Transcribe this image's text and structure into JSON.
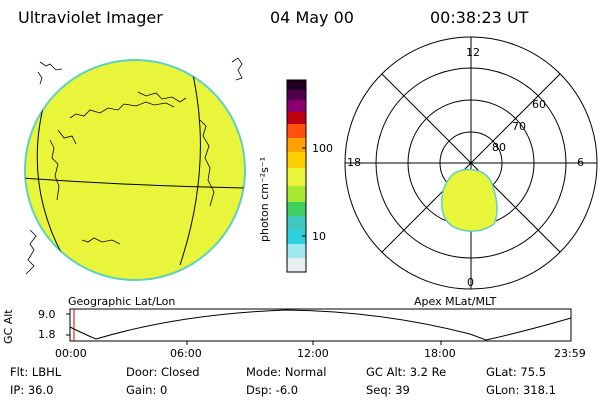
{
  "header": {
    "instrument": "Ultraviolet Imager",
    "date": "04 May 00",
    "time": "00:38:23 UT"
  },
  "colorbar": {
    "unit_label": "photon cm⁻²s⁻¹",
    "ticks": [
      "100",
      "10"
    ],
    "scale": "log"
  },
  "left_panel": {
    "caption": "Geographic Lat/Lon"
  },
  "right_panel": {
    "caption": "Apex MLat/MLT",
    "mlt_labels": {
      "top": "12",
      "left": "18",
      "right": "6",
      "bottom": "0"
    },
    "mlat_labels": [
      "60",
      "70",
      "80"
    ]
  },
  "altitude_plot": {
    "ylabel": "GC Alt",
    "yticks": [
      "9.0",
      "1.8"
    ],
    "xticks": [
      "00:00",
      "06:00",
      "12:00",
      "18:00",
      "23:59"
    ],
    "current_time_marker": "00:38"
  },
  "info": {
    "flt": "Flt: LBHL",
    "ip": "IP: 36.0",
    "door": "Door: Closed",
    "gain": "Gain:  0",
    "mode": "Mode: Normal",
    "dsp": "Dsp:   -6.0",
    "gc_alt": "GC Alt: 3.2 Re",
    "seq": "Seq: 39",
    "glat": "GLat:  75.5",
    "glon": "GLon: 318.1"
  },
  "colors": {
    "emission": "#e8f53a",
    "limb": "#5fd0c0",
    "marker": "#cc0000"
  }
}
